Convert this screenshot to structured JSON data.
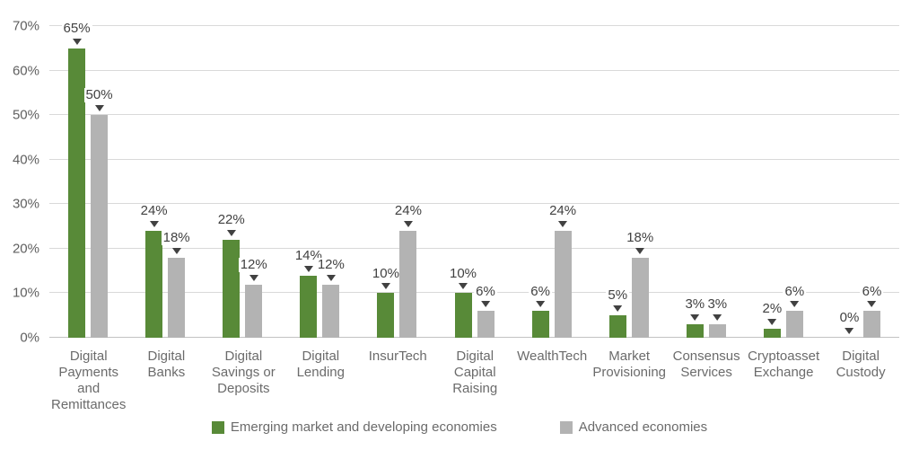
{
  "chart_data": {
    "type": "bar",
    "title": "",
    "categories": [
      "Digital Payments and Remittances",
      "Digital Banks",
      "Digital Savings or Deposits",
      "Digital Lending",
      "InsurTech",
      "Digital Capital Raising",
      "WealthTech",
      "Market Provisioning",
      "Consensus Services",
      "Cryptoasset Exchange",
      "Digital Custody"
    ],
    "series": [
      {
        "name": "Emerging market and developing economies",
        "color": "#588a38",
        "values": [
          65,
          24,
          22,
          14,
          10,
          10,
          6,
          5,
          3,
          2,
          0
        ]
      },
      {
        "name": "Advanced economies",
        "color": "#b3b3b3",
        "values": [
          50,
          18,
          12,
          12,
          24,
          6,
          24,
          18,
          3,
          6,
          6
        ]
      }
    ],
    "ylim": [
      0,
      70
    ],
    "ytick_step": 10,
    "ytick_labels": [
      "0%",
      "10%",
      "20%",
      "30%",
      "40%",
      "50%",
      "60%",
      "70%"
    ],
    "value_suffix": "%",
    "data_label_marker": "down-triangle",
    "grid": "horizontal",
    "legend_position": "bottom"
  },
  "colors": {
    "gridline": "#d9d9d9",
    "axis_text": "#5f5f5f",
    "data_label_text": "#414141",
    "category_text": "#6b6b6b",
    "series_green": "#588a38",
    "series_gray": "#b3b3b3"
  }
}
